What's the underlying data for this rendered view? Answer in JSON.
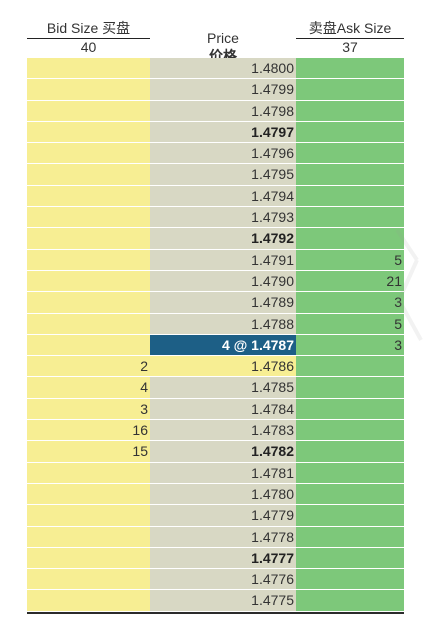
{
  "header": {
    "bid_label": "Bid Size 买盘",
    "bid_total": "40",
    "price_label": "Price",
    "price_label_cn": "价格",
    "ask_label": "卖盘Ask Size",
    "ask_total": "37"
  },
  "rows": [
    {
      "bid": "",
      "price": "1.4800",
      "ask": "",
      "bold": false
    },
    {
      "bid": "",
      "price": "1.4799",
      "ask": "",
      "bold": false
    },
    {
      "bid": "",
      "price": "1.4798",
      "ask": "",
      "bold": false
    },
    {
      "bid": "",
      "price": "1.4797",
      "ask": "",
      "bold": true
    },
    {
      "bid": "",
      "price": "1.4796",
      "ask": "",
      "bold": false
    },
    {
      "bid": "",
      "price": "1.4795",
      "ask": "",
      "bold": false
    },
    {
      "bid": "",
      "price": "1.4794",
      "ask": "",
      "bold": false
    },
    {
      "bid": "",
      "price": "1.4793",
      "ask": "",
      "bold": false
    },
    {
      "bid": "",
      "price": "1.4792",
      "ask": "",
      "bold": true
    },
    {
      "bid": "",
      "price": "1.4791",
      "ask": "5",
      "bold": false
    },
    {
      "bid": "",
      "price": "1.4790",
      "ask": "21",
      "bold": false
    },
    {
      "bid": "",
      "price": "1.4789",
      "ask": "3",
      "bold": false
    },
    {
      "bid": "",
      "price": "1.4788",
      "ask": "5",
      "bold": false
    },
    {
      "bid": "",
      "price": "4 @ 1.4787",
      "ask": "3",
      "bold": true,
      "last_trade": true
    },
    {
      "bid": "2",
      "price": "1.4786",
      "ask": "",
      "bold": false,
      "first_bid": true
    },
    {
      "bid": "4",
      "price": "1.4785",
      "ask": "",
      "bold": false
    },
    {
      "bid": "3",
      "price": "1.4784",
      "ask": "",
      "bold": false
    },
    {
      "bid": "16",
      "price": "1.4783",
      "ask": "",
      "bold": false
    },
    {
      "bid": "15",
      "price": "1.4782",
      "ask": "",
      "bold": true
    },
    {
      "bid": "",
      "price": "1.4781",
      "ask": "",
      "bold": false
    },
    {
      "bid": "",
      "price": "1.4780",
      "ask": "",
      "bold": false
    },
    {
      "bid": "",
      "price": "1.4779",
      "ask": "",
      "bold": false
    },
    {
      "bid": "",
      "price": "1.4778",
      "ask": "",
      "bold": false
    },
    {
      "bid": "",
      "price": "1.4777",
      "ask": "",
      "bold": true
    },
    {
      "bid": "",
      "price": "1.4776",
      "ask": "",
      "bold": false
    },
    {
      "bid": "",
      "price": "1.4775",
      "ask": "",
      "bold": false
    }
  ],
  "colors": {
    "bid": "#f7ee93",
    "price": "#d8d8c4",
    "ask": "#7dc87a",
    "last_trade": "#1d5f86"
  }
}
